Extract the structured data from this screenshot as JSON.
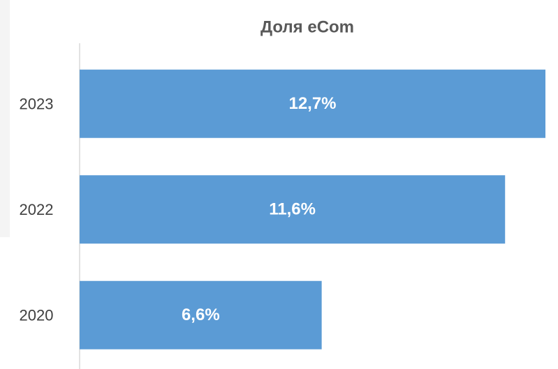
{
  "chart_data": {
    "type": "bar",
    "orientation": "horizontal",
    "title": "Доля eCom",
    "categories": [
      "2023",
      "2022",
      "2020"
    ],
    "values": [
      12.7,
      11.6,
      6.6
    ],
    "value_labels": [
      "12,7%",
      "11,6%",
      "6,6%"
    ],
    "color": "#5b9bd5",
    "xlim": [
      0,
      12.7
    ]
  }
}
